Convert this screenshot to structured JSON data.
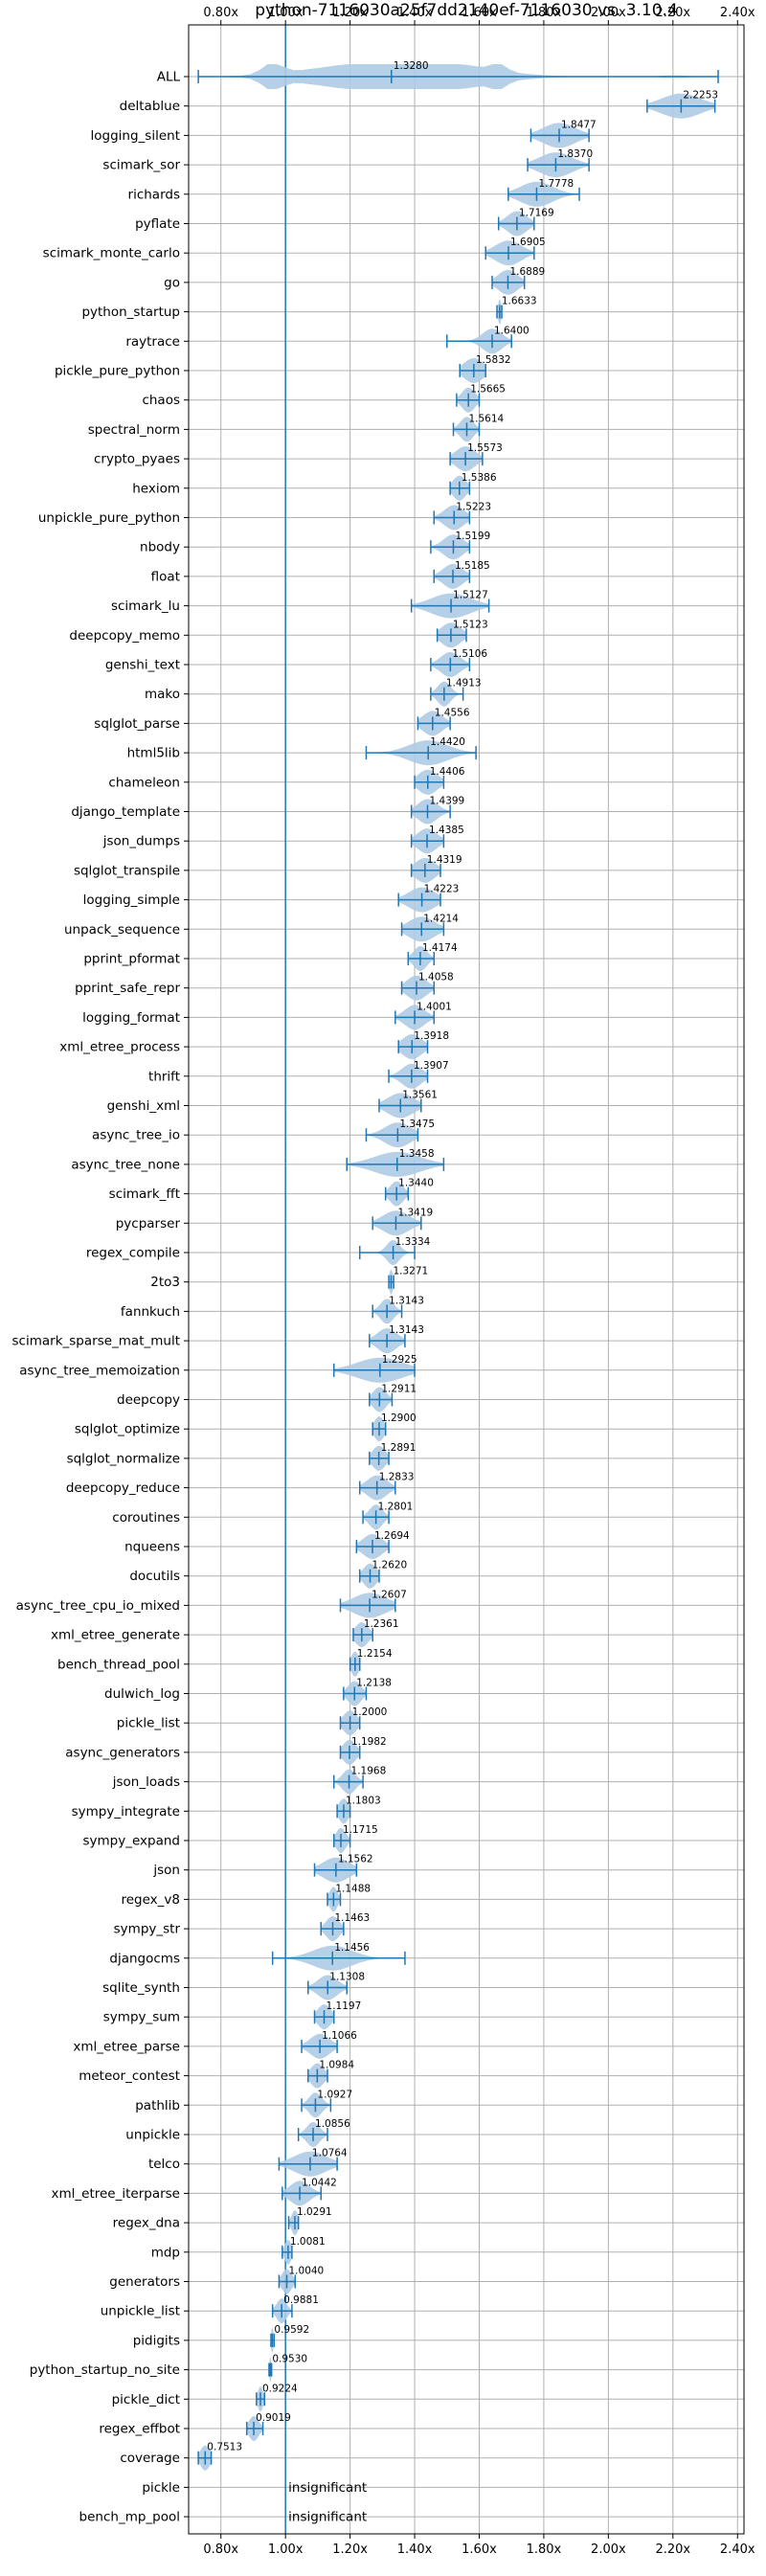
{
  "chart_data": {
    "type": "violin",
    "title": "python-7116030a25f7dd2140ef-7116030 vs. 3.10.4",
    "xlim": [
      0.7,
      2.42
    ],
    "xticks": [
      "0.80x",
      "1.00x",
      "1.20x",
      "1.40x",
      "1.60x",
      "1.80x",
      "2.00x",
      "2.20x",
      "2.40x"
    ],
    "xtick_values": [
      0.8,
      1.0,
      1.2,
      1.4,
      1.6,
      1.8,
      2.0,
      2.2,
      2.4
    ],
    "reference_line": 1.0,
    "grid": true,
    "colors": {
      "violin": "#aecbe6",
      "line": "#1f77b4",
      "grid": "#b0b0b0"
    },
    "insignificant_label": "insignificant",
    "benchmarks": [
      {
        "name": "ALL",
        "value": 1.328,
        "label": "1.3280",
        "min": 0.73,
        "max": 2.34,
        "spread": 0.3
      },
      {
        "name": "deltablue",
        "value": 2.2253,
        "label": "2.2253",
        "min": 2.12,
        "max": 2.33,
        "spread": 0.06
      },
      {
        "name": "logging_silent",
        "value": 1.8477,
        "label": "1.8477",
        "min": 1.76,
        "max": 1.94,
        "spread": 0.05
      },
      {
        "name": "scimark_sor",
        "value": 1.837,
        "label": "1.8370",
        "min": 1.75,
        "max": 1.94,
        "spread": 0.05
      },
      {
        "name": "richards",
        "value": 1.7778,
        "label": "1.7778",
        "min": 1.69,
        "max": 1.91,
        "spread": 0.05
      },
      {
        "name": "pyflate",
        "value": 1.7169,
        "label": "1.7169",
        "min": 1.66,
        "max": 1.77,
        "spread": 0.03
      },
      {
        "name": "scimark_monte_carlo",
        "value": 1.6905,
        "label": "1.6905",
        "min": 1.62,
        "max": 1.77,
        "spread": 0.04
      },
      {
        "name": "go",
        "value": 1.6889,
        "label": "1.6889",
        "min": 1.64,
        "max": 1.74,
        "spread": 0.03
      },
      {
        "name": "python_startup",
        "value": 1.6633,
        "label": "1.6633",
        "min": 1.655,
        "max": 1.67,
        "spread": 0.005
      },
      {
        "name": "raytrace",
        "value": 1.64,
        "label": "1.6400",
        "min": 1.5,
        "max": 1.7,
        "spread": 0.03
      },
      {
        "name": "pickle_pure_python",
        "value": 1.5832,
        "label": "1.5832",
        "min": 1.54,
        "max": 1.62,
        "spread": 0.03
      },
      {
        "name": "chaos",
        "value": 1.5665,
        "label": "1.5665",
        "min": 1.53,
        "max": 1.6,
        "spread": 0.02
      },
      {
        "name": "spectral_norm",
        "value": 1.5614,
        "label": "1.5614",
        "min": 1.52,
        "max": 1.6,
        "spread": 0.02
      },
      {
        "name": "crypto_pyaes",
        "value": 1.5573,
        "label": "1.5573",
        "min": 1.51,
        "max": 1.61,
        "spread": 0.03
      },
      {
        "name": "hexiom",
        "value": 1.5386,
        "label": "1.5386",
        "min": 1.51,
        "max": 1.57,
        "spread": 0.02
      },
      {
        "name": "unpickle_pure_python",
        "value": 1.5223,
        "label": "1.5223",
        "min": 1.46,
        "max": 1.57,
        "spread": 0.03
      },
      {
        "name": "nbody",
        "value": 1.5199,
        "label": "1.5199",
        "min": 1.45,
        "max": 1.57,
        "spread": 0.03
      },
      {
        "name": "float",
        "value": 1.5185,
        "label": "1.5185",
        "min": 1.46,
        "max": 1.57,
        "spread": 0.03
      },
      {
        "name": "scimark_lu",
        "value": 1.5127,
        "label": "1.5127",
        "min": 1.39,
        "max": 1.63,
        "spread": 0.06
      },
      {
        "name": "deepcopy_memo",
        "value": 1.5123,
        "label": "1.5123",
        "min": 1.47,
        "max": 1.56,
        "spread": 0.03
      },
      {
        "name": "genshi_text",
        "value": 1.5106,
        "label": "1.5106",
        "min": 1.45,
        "max": 1.57,
        "spread": 0.03
      },
      {
        "name": "mako",
        "value": 1.4913,
        "label": "1.4913",
        "min": 1.45,
        "max": 1.55,
        "spread": 0.02
      },
      {
        "name": "sqlglot_parse",
        "value": 1.4556,
        "label": "1.4556",
        "min": 1.41,
        "max": 1.51,
        "spread": 0.03
      },
      {
        "name": "html5lib",
        "value": 1.442,
        "label": "1.4420",
        "min": 1.25,
        "max": 1.59,
        "spread": 0.06
      },
      {
        "name": "chameleon",
        "value": 1.4406,
        "label": "1.4406",
        "min": 1.4,
        "max": 1.49,
        "spread": 0.03
      },
      {
        "name": "django_template",
        "value": 1.4399,
        "label": "1.4399",
        "min": 1.39,
        "max": 1.51,
        "spread": 0.03
      },
      {
        "name": "json_dumps",
        "value": 1.4385,
        "label": "1.4385",
        "min": 1.39,
        "max": 1.49,
        "spread": 0.03
      },
      {
        "name": "sqlglot_transpile",
        "value": 1.4319,
        "label": "1.4319",
        "min": 1.39,
        "max": 1.48,
        "spread": 0.03
      },
      {
        "name": "logging_simple",
        "value": 1.4223,
        "label": "1.4223",
        "min": 1.35,
        "max": 1.48,
        "spread": 0.04
      },
      {
        "name": "unpack_sequence",
        "value": 1.4214,
        "label": "1.4214",
        "min": 1.36,
        "max": 1.49,
        "spread": 0.04
      },
      {
        "name": "pprint_pformat",
        "value": 1.4174,
        "label": "1.4174",
        "min": 1.38,
        "max": 1.46,
        "spread": 0.02
      },
      {
        "name": "pprint_safe_repr",
        "value": 1.4058,
        "label": "1.4058",
        "min": 1.36,
        "max": 1.46,
        "spread": 0.03
      },
      {
        "name": "logging_format",
        "value": 1.4001,
        "label": "1.4001",
        "min": 1.34,
        "max": 1.46,
        "spread": 0.03
      },
      {
        "name": "xml_etree_process",
        "value": 1.3918,
        "label": "1.3918",
        "min": 1.35,
        "max": 1.44,
        "spread": 0.03
      },
      {
        "name": "thrift",
        "value": 1.3907,
        "label": "1.3907",
        "min": 1.32,
        "max": 1.44,
        "spread": 0.03
      },
      {
        "name": "genshi_xml",
        "value": 1.3561,
        "label": "1.3561",
        "min": 1.29,
        "max": 1.42,
        "spread": 0.04
      },
      {
        "name": "async_tree_io",
        "value": 1.3475,
        "label": "1.3475",
        "min": 1.25,
        "max": 1.41,
        "spread": 0.04
      },
      {
        "name": "async_tree_none",
        "value": 1.3458,
        "label": "1.3458",
        "min": 1.19,
        "max": 1.49,
        "spread": 0.07
      },
      {
        "name": "scimark_fft",
        "value": 1.344,
        "label": "1.3440",
        "min": 1.31,
        "max": 1.38,
        "spread": 0.02
      },
      {
        "name": "pycparser",
        "value": 1.3419,
        "label": "1.3419",
        "min": 1.27,
        "max": 1.42,
        "spread": 0.04
      },
      {
        "name": "regex_compile",
        "value": 1.3334,
        "label": "1.3334",
        "min": 1.23,
        "max": 1.4,
        "spread": 0.02
      },
      {
        "name": "2to3",
        "value": 1.3271,
        "label": "1.3271",
        "min": 1.32,
        "max": 1.335,
        "spread": 0.006
      },
      {
        "name": "fannkuch",
        "value": 1.3143,
        "label": "1.3143",
        "min": 1.27,
        "max": 1.36,
        "spread": 0.02
      },
      {
        "name": "scimark_sparse_mat_mult",
        "value": 1.3143,
        "label": "1.3143",
        "min": 1.26,
        "max": 1.37,
        "spread": 0.03
      },
      {
        "name": "async_tree_memoization",
        "value": 1.2925,
        "label": "1.2925",
        "min": 1.15,
        "max": 1.4,
        "spread": 0.07
      },
      {
        "name": "deepcopy",
        "value": 1.2911,
        "label": "1.2911",
        "min": 1.26,
        "max": 1.33,
        "spread": 0.02
      },
      {
        "name": "sqlglot_optimize",
        "value": 1.29,
        "label": "1.2900",
        "min": 1.27,
        "max": 1.31,
        "spread": 0.015
      },
      {
        "name": "sqlglot_normalize",
        "value": 1.2891,
        "label": "1.2891",
        "min": 1.26,
        "max": 1.32,
        "spread": 0.02
      },
      {
        "name": "deepcopy_reduce",
        "value": 1.2833,
        "label": "1.2833",
        "min": 1.23,
        "max": 1.34,
        "spread": 0.03
      },
      {
        "name": "coroutines",
        "value": 1.2801,
        "label": "1.2801",
        "min": 1.24,
        "max": 1.32,
        "spread": 0.02
      },
      {
        "name": "nqueens",
        "value": 1.2694,
        "label": "1.2694",
        "min": 1.22,
        "max": 1.32,
        "spread": 0.03
      },
      {
        "name": "docutils",
        "value": 1.262,
        "label": "1.2620",
        "min": 1.23,
        "max": 1.29,
        "spread": 0.02
      },
      {
        "name": "async_tree_cpu_io_mixed",
        "value": 1.2607,
        "label": "1.2607",
        "min": 1.17,
        "max": 1.34,
        "spread": 0.05
      },
      {
        "name": "xml_etree_generate",
        "value": 1.2361,
        "label": "1.2361",
        "min": 1.21,
        "max": 1.27,
        "spread": 0.02
      },
      {
        "name": "bench_thread_pool",
        "value": 1.2154,
        "label": "1.2154",
        "min": 1.2,
        "max": 1.23,
        "spread": 0.012
      },
      {
        "name": "dulwich_log",
        "value": 1.2138,
        "label": "1.2138",
        "min": 1.18,
        "max": 1.25,
        "spread": 0.02
      },
      {
        "name": "pickle_list",
        "value": 1.2,
        "label": "1.2000",
        "min": 1.17,
        "max": 1.23,
        "spread": 0.02
      },
      {
        "name": "async_generators",
        "value": 1.1982,
        "label": "1.1982",
        "min": 1.17,
        "max": 1.23,
        "spread": 0.02
      },
      {
        "name": "json_loads",
        "value": 1.1968,
        "label": "1.1968",
        "min": 1.15,
        "max": 1.24,
        "spread": 0.02
      },
      {
        "name": "sympy_integrate",
        "value": 1.1803,
        "label": "1.1803",
        "min": 1.16,
        "max": 1.2,
        "spread": 0.015
      },
      {
        "name": "sympy_expand",
        "value": 1.1715,
        "label": "1.1715",
        "min": 1.15,
        "max": 1.2,
        "spread": 0.015
      },
      {
        "name": "json",
        "value": 1.1562,
        "label": "1.1562",
        "min": 1.09,
        "max": 1.22,
        "spread": 0.04
      },
      {
        "name": "regex_v8",
        "value": 1.1488,
        "label": "1.1488",
        "min": 1.13,
        "max": 1.17,
        "spread": 0.012
      },
      {
        "name": "sympy_str",
        "value": 1.1463,
        "label": "1.1463",
        "min": 1.11,
        "max": 1.18,
        "spread": 0.02
      },
      {
        "name": "djangocms",
        "value": 1.1456,
        "label": "1.1456",
        "min": 0.96,
        "max": 1.37,
        "spread": 0.06
      },
      {
        "name": "sqlite_synth",
        "value": 1.1308,
        "label": "1.1308",
        "min": 1.07,
        "max": 1.19,
        "spread": 0.03
      },
      {
        "name": "sympy_sum",
        "value": 1.1197,
        "label": "1.1197",
        "min": 1.09,
        "max": 1.15,
        "spread": 0.02
      },
      {
        "name": "xml_etree_parse",
        "value": 1.1066,
        "label": "1.1066",
        "min": 1.05,
        "max": 1.16,
        "spread": 0.03
      },
      {
        "name": "meteor_contest",
        "value": 1.0984,
        "label": "1.0984",
        "min": 1.07,
        "max": 1.13,
        "spread": 0.02
      },
      {
        "name": "pathlib",
        "value": 1.0927,
        "label": "1.0927",
        "min": 1.05,
        "max": 1.14,
        "spread": 0.02
      },
      {
        "name": "unpickle",
        "value": 1.0856,
        "label": "1.0856",
        "min": 1.04,
        "max": 1.13,
        "spread": 0.02
      },
      {
        "name": "telco",
        "value": 1.0764,
        "label": "1.0764",
        "min": 0.98,
        "max": 1.16,
        "spread": 0.05
      },
      {
        "name": "xml_etree_iterparse",
        "value": 1.0442,
        "label": "1.0442",
        "min": 0.99,
        "max": 1.11,
        "spread": 0.03
      },
      {
        "name": "regex_dna",
        "value": 1.0291,
        "label": "1.0291",
        "min": 1.01,
        "max": 1.04,
        "spread": 0.01
      },
      {
        "name": "mdp",
        "value": 1.0081,
        "label": "1.0081",
        "min": 0.99,
        "max": 1.02,
        "spread": 0.01
      },
      {
        "name": "generators",
        "value": 1.004,
        "label": "1.0040",
        "min": 0.98,
        "max": 1.03,
        "spread": 0.015
      },
      {
        "name": "unpickle_list",
        "value": 0.9881,
        "label": "0.9881",
        "min": 0.96,
        "max": 1.02,
        "spread": 0.015
      },
      {
        "name": "pidigits",
        "value": 0.9592,
        "label": "0.9592",
        "min": 0.955,
        "max": 0.965,
        "spread": 0.004
      },
      {
        "name": "python_startup_no_site",
        "value": 0.953,
        "label": "0.9530",
        "min": 0.949,
        "max": 0.957,
        "spread": 0.003
      },
      {
        "name": "pickle_dict",
        "value": 0.9224,
        "label": "0.9224",
        "min": 0.91,
        "max": 0.935,
        "spread": 0.008
      },
      {
        "name": "regex_effbot",
        "value": 0.9019,
        "label": "0.9019",
        "min": 0.88,
        "max": 0.93,
        "spread": 0.015
      },
      {
        "name": "coverage",
        "value": 0.7513,
        "label": "0.7513",
        "min": 0.73,
        "max": 0.77,
        "spread": 0.015
      },
      {
        "name": "pickle",
        "value": null,
        "label": "",
        "insignificant": true
      },
      {
        "name": "bench_mp_pool",
        "value": null,
        "label": "",
        "insignificant": true
      }
    ]
  }
}
